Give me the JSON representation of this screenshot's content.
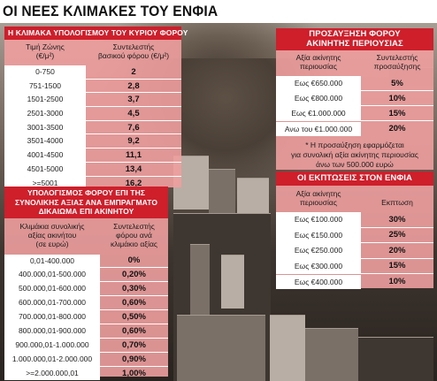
{
  "title": "ΟΙ ΝΕΕΣ ΚΛΙΜΑΚΕΣ ΤΟΥ ΕΝΦΙΑ",
  "main_tax": {
    "title": "Η ΚΛΙΜΑΚΑ ΥΠΟΛΟΓΙΣΜΟΥ ΤΟΥ ΚΥΡΙΟΥ ΦΟΡΟΥ",
    "col1_header": [
      "Τιμή Ζώνης",
      "(€/μ²)"
    ],
    "col2_header": [
      "Συντελεστής",
      "βασικού φόρου (€/μ²)"
    ],
    "rows": [
      [
        "0-750",
        "2"
      ],
      [
        "751-1500",
        "2,8"
      ],
      [
        "1501-2500",
        "3,7"
      ],
      [
        "2501-3000",
        "4,5"
      ],
      [
        "3001-3500",
        "7,6"
      ],
      [
        "3501-4000",
        "9,2"
      ],
      [
        "4001-4500",
        "11,1"
      ],
      [
        "4501-5000",
        "13,4"
      ],
      [
        ">=5001",
        "16,2"
      ]
    ]
  },
  "supplementary": {
    "title_lines": [
      "ΠΡΟΣΑΥΞΗΣΗ ΦΟΡΟΥ",
      "ΑΚΙΝΗΤΗΣ ΠΕΡΙΟΥΣΙΑΣ"
    ],
    "col1_header": [
      "Αξία ακίνητης",
      "περιουσίας"
    ],
    "col2_header": [
      "Συντελεστής",
      "προσαύξησης"
    ],
    "rows": [
      [
        "Εως €650.000",
        "5%"
      ],
      [
        "Εως €800.000",
        "10%"
      ],
      [
        "Εως €1.000.000",
        "15%"
      ],
      [
        "Ανω του €1.000.000",
        "20%"
      ]
    ],
    "note_lines": [
      "* Η προσαύξηση εφαρμόζεται",
      "για συνολική αξία ακίνητης περιουσίας",
      "άνω των 500.000 ευρώ"
    ]
  },
  "legal_entities": {
    "title_lines": [
      "ΥΠΟΛΟΓΙΣΜΟΣ ΦΟΡΟΥ ΕΠΙ ΤΗΣ",
      "ΣΥΝΟΛΙΚΗΣ ΑΞΙΑΣ ΑΝΑ ΕΜΠΡΑΓΜΑΤΟ",
      "ΔΙΚΑΙΩΜΑ ΕΠΙ ΑΚΙΝΗΤΟΥ"
    ],
    "col1_header": [
      "Κλιμάκια συνολικής",
      "αξίας ακινήτου",
      "(σε ευρώ)"
    ],
    "col2_header": [
      "Συντελεστής",
      "φόρου ανά",
      "κλιμάκιο αξίας"
    ],
    "rows": [
      [
        "0,01-400.000",
        "0%"
      ],
      [
        "400.000,01-500.000",
        "0,20%"
      ],
      [
        "500.000,01-600.000",
        "0,30%"
      ],
      [
        "600.000,01-700.000",
        "0,60%"
      ],
      [
        "700.000,01-800.000",
        "0,50%"
      ],
      [
        "800.000,01-900.000",
        "0,60%"
      ],
      [
        "900.000,01-1.000.000",
        "0,70%"
      ],
      [
        "1.000.000,01-2.000.000",
        "0,90%"
      ],
      [
        ">=2.000.000,01",
        "1,00%"
      ]
    ]
  },
  "discounts": {
    "title": "ΟΙ ΕΚΠΤΩΣΕΙΣ ΣΤΟΝ ΕΝΦΙΑ",
    "col1_header": [
      "Αξία ακίνητης",
      "περιουσίας"
    ],
    "col2_header": [
      "Εκπτωση"
    ],
    "rows": [
      [
        "Εως €100.000",
        "30%"
      ],
      [
        "Εως €150.000",
        "25%"
      ],
      [
        "Εως €250.000",
        "20%"
      ],
      [
        "Εως €300.000",
        "15%"
      ],
      [
        "Εως €400.000",
        "10%"
      ]
    ]
  }
}
